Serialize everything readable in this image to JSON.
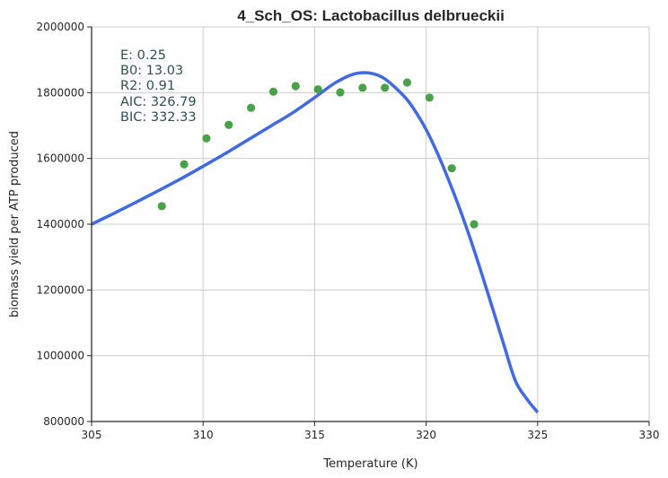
{
  "chart_data": {
    "type": "scatter",
    "title": "4_Sch_OS: Lactobacillus delbrueckii",
    "xlabel": "Temperature (K)",
    "ylabel": "biomass yield per ATP produced",
    "xlim": [
      305,
      330
    ],
    "ylim": [
      800000,
      2000000
    ],
    "xticks": [
      "305",
      "310",
      "315",
      "320",
      "325",
      "330"
    ],
    "yticks": [
      "800000",
      "1000000",
      "1200000",
      "1400000",
      "1600000",
      "1800000",
      "2000000"
    ],
    "grid": true,
    "series": [
      {
        "kind": "scatter",
        "color": "#4aa14a",
        "x": [
          308.15,
          309.15,
          310.15,
          311.15,
          312.15,
          313.15,
          314.15,
          315.15,
          316.15,
          317.15,
          318.15,
          319.15,
          320.15,
          321.15,
          322.15
        ],
        "y": [
          1455000,
          1582000,
          1661000,
          1702000,
          1754000,
          1803000,
          1820000,
          1810000,
          1801000,
          1815000,
          1815000,
          1831000,
          1785000,
          1570000,
          1400000
        ]
      },
      {
        "kind": "line",
        "color": "#4169e1",
        "x": [
          305,
          306,
          307,
          308,
          309,
          310,
          311,
          312,
          313,
          314,
          315,
          316,
          317,
          318,
          319,
          319.5,
          320,
          320.5,
          321,
          321.5,
          322,
          322.5,
          323,
          323.5,
          324,
          324.5,
          325
        ],
        "y": [
          1400000,
          1433000,
          1467000,
          1502000,
          1538000,
          1576000,
          1615000,
          1656000,
          1697000,
          1738000,
          1785000,
          1833000,
          1860000,
          1848000,
          1790000,
          1745000,
          1688000,
          1617000,
          1536000,
          1448000,
          1352000,
          1248000,
          1140000,
          1030000,
          924000,
          870000,
          828000
        ]
      }
    ],
    "annotations": [
      "E:  0.25",
      "B0:  13.03",
      "R2:  0.91",
      "AIC: 326.79",
      "BIC: 332.33"
    ]
  }
}
